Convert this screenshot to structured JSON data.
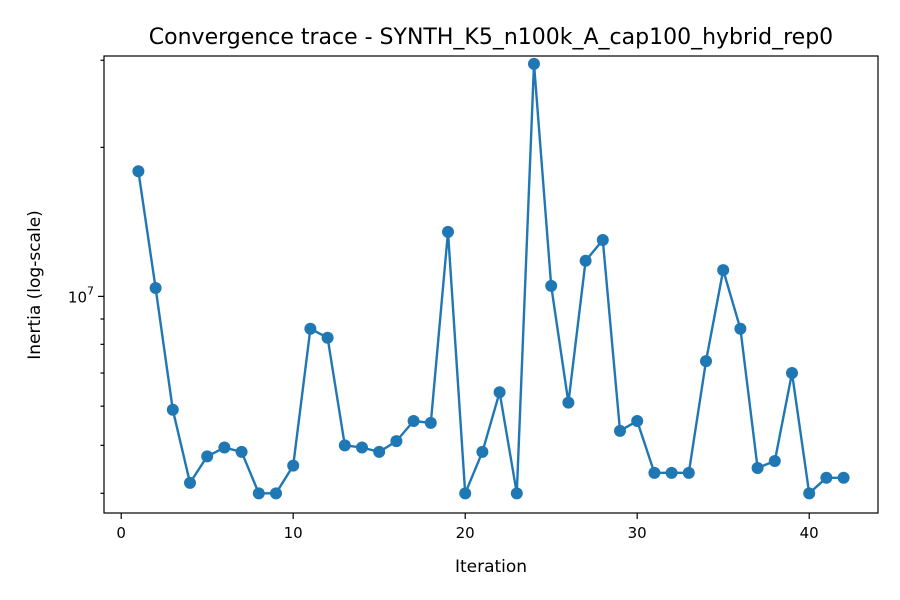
{
  "chart_data": {
    "type": "line",
    "title": "Convergence trace - SYNTH_K5_n100k_A_cap100_hybrid_rep0",
    "xlabel": "Iteration",
    "ylabel": "Inertia (log-scale)",
    "xlim": [
      -1,
      44
    ],
    "ylim": [
      3650000,
      30600000
    ],
    "yscale": "log",
    "grid": false,
    "x_ticks": [
      {
        "value": 0,
        "label": "0"
      },
      {
        "value": 10,
        "label": "10"
      },
      {
        "value": 20,
        "label": "20"
      },
      {
        "value": 30,
        "label": "30"
      },
      {
        "value": 40,
        "label": "40"
      }
    ],
    "y_major_ticks": [
      {
        "value": 10000000,
        "label_base": "10",
        "label_exp": "7"
      }
    ],
    "y_minor_ticks": [
      4000000,
      5000000,
      6000000,
      7000000,
      8000000,
      9000000,
      20000000,
      30000000
    ],
    "line_color": "#1f77b4",
    "x": [
      1,
      2,
      3,
      4,
      5,
      6,
      7,
      8,
      9,
      10,
      11,
      12,
      13,
      14,
      15,
      16,
      17,
      18,
      19,
      20,
      21,
      22,
      23,
      24,
      25,
      26,
      27,
      28,
      29,
      30,
      31,
      32,
      33,
      34,
      35,
      36,
      37,
      38,
      39,
      40,
      41,
      42
    ],
    "y": [
      17900000,
      10400000,
      5900000,
      4200000,
      4750000,
      4950000,
      4850000,
      4000000,
      4000000,
      4550000,
      8600000,
      8250000,
      5000000,
      4950000,
      4850000,
      5100000,
      5600000,
      5550000,
      13500000,
      4000000,
      4850000,
      6400000,
      4000000,
      29500000,
      10500000,
      6100000,
      11800000,
      13000000,
      5350000,
      5600000,
      4400000,
      4400000,
      4400000,
      7400000,
      11300000,
      8600000,
      4500000,
      4650000,
      7000000,
      4000000,
      4300000,
      4300000
    ]
  }
}
